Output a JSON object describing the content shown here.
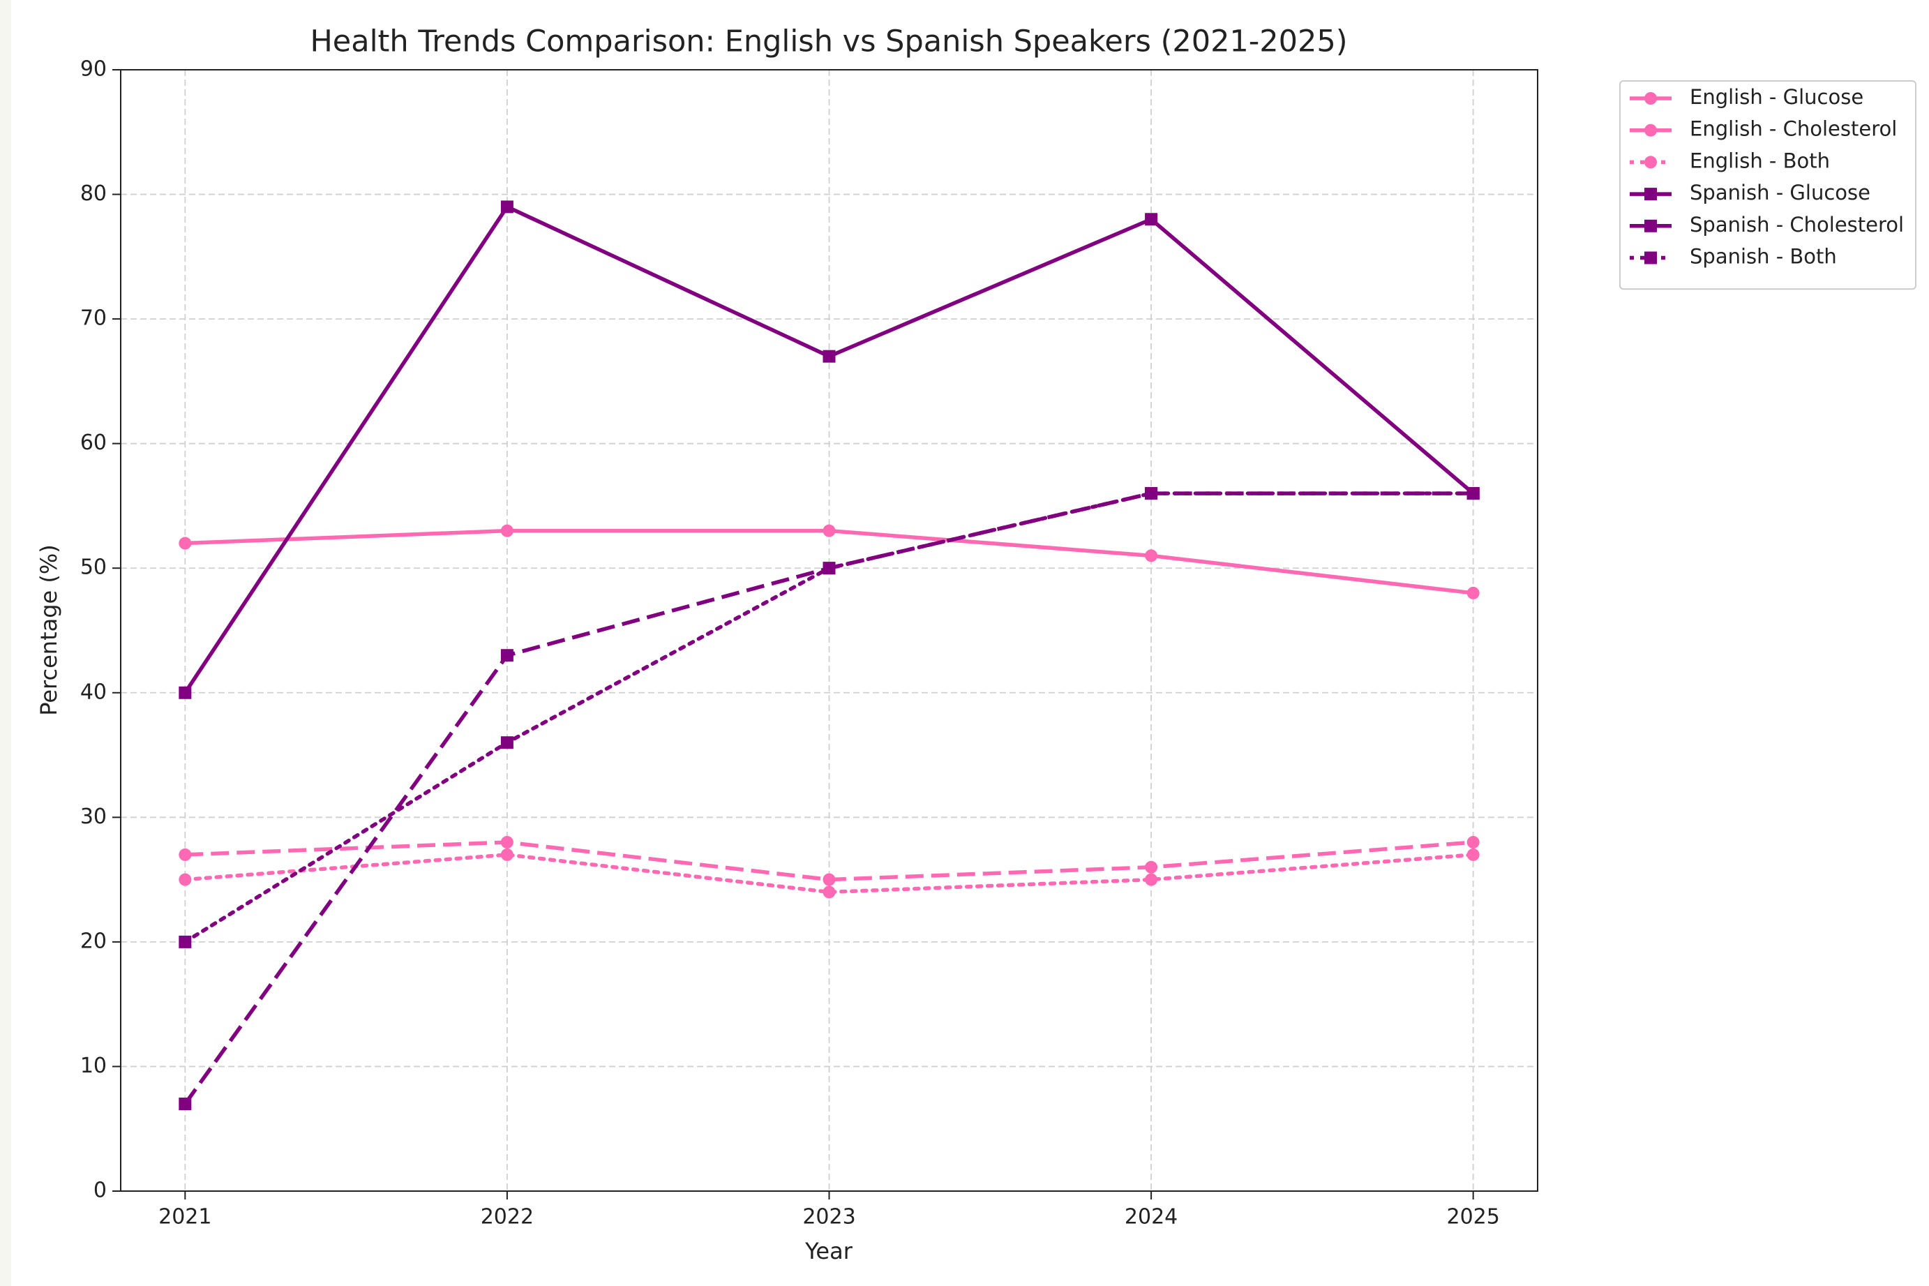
{
  "chart_data": {
    "type": "line",
    "title": "Health Trends Comparison: English vs Spanish Speakers (2021-2025)",
    "xlabel": "Year",
    "ylabel": "Percentage (%)",
    "x": [
      2021,
      2022,
      2023,
      2024,
      2025
    ],
    "series": [
      {
        "name": "English - Glucose",
        "color": "#ff69b4",
        "style": "solid",
        "marker": "circle",
        "values": [
          52,
          53,
          53,
          51,
          48
        ]
      },
      {
        "name": "English - Cholesterol",
        "color": "#ff69b4",
        "style": "dashed",
        "marker": "circle",
        "values": [
          27,
          28,
          25,
          26,
          28
        ]
      },
      {
        "name": "English - Both",
        "color": "#ff69b4",
        "style": "dotted",
        "marker": "circle",
        "values": [
          25,
          27,
          24,
          25,
          27
        ]
      },
      {
        "name": "Spanish - Glucose",
        "color": "#800080",
        "style": "solid",
        "marker": "square",
        "values": [
          40,
          79,
          67,
          78,
          56
        ]
      },
      {
        "name": "Spanish - Cholesterol",
        "color": "#800080",
        "style": "dashed",
        "marker": "square",
        "values": [
          7,
          43,
          50,
          56,
          56
        ]
      },
      {
        "name": "Spanish - Both",
        "color": "#800080",
        "style": "dotted",
        "marker": "square",
        "values": [
          20,
          36,
          50,
          56,
          56
        ]
      }
    ],
    "xlim": [
      2020.8,
      2025.2
    ],
    "xticks": [
      2021,
      2022,
      2023,
      2024,
      2025
    ],
    "ylim": [
      0,
      90
    ],
    "yticks": [
      0,
      10,
      20,
      30,
      40,
      50,
      60,
      70,
      80,
      90
    ],
    "grid": true,
    "legend": "outside upper right"
  }
}
